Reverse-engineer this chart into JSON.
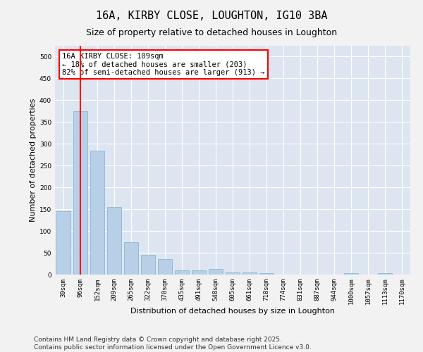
{
  "title_line1": "16A, KIRBY CLOSE, LOUGHTON, IG10 3BA",
  "title_line2": "Size of property relative to detached houses in Loughton",
  "xlabel": "Distribution of detached houses by size in Loughton",
  "ylabel": "Number of detached properties",
  "categories": [
    "39sqm",
    "96sqm",
    "152sqm",
    "209sqm",
    "265sqm",
    "322sqm",
    "378sqm",
    "435sqm",
    "491sqm",
    "548sqm",
    "605sqm",
    "661sqm",
    "718sqm",
    "774sqm",
    "831sqm",
    "887sqm",
    "944sqm",
    "1000sqm",
    "1057sqm",
    "1113sqm",
    "1170sqm"
  ],
  "values": [
    145,
    375,
    285,
    155,
    75,
    45,
    35,
    10,
    10,
    13,
    5,
    5,
    3,
    0,
    0,
    0,
    0,
    3,
    0,
    3,
    0
  ],
  "bar_color": "#b8cfe8",
  "bar_edgecolor": "#7aafd4",
  "background_color": "#dde6f0",
  "fig_background": "#f2f2f2",
  "vline_x": 1,
  "vline_color": "red",
  "annotation_text": "16A KIRBY CLOSE: 109sqm\n← 18% of detached houses are smaller (203)\n82% of semi-detached houses are larger (913) →",
  "annotation_box_color": "white",
  "annotation_box_edgecolor": "red",
  "ylim": [
    0,
    525
  ],
  "yticks": [
    0,
    50,
    100,
    150,
    200,
    250,
    300,
    350,
    400,
    450,
    500
  ],
  "footnote": "Contains HM Land Registry data © Crown copyright and database right 2025.\nContains public sector information licensed under the Open Government Licence v3.0.",
  "grid_color": "#ffffff",
  "title_fontsize": 11,
  "subtitle_fontsize": 9,
  "axis_label_fontsize": 8,
  "tick_fontsize": 6.5,
  "footnote_fontsize": 6.5,
  "annotation_fontsize": 7.5
}
